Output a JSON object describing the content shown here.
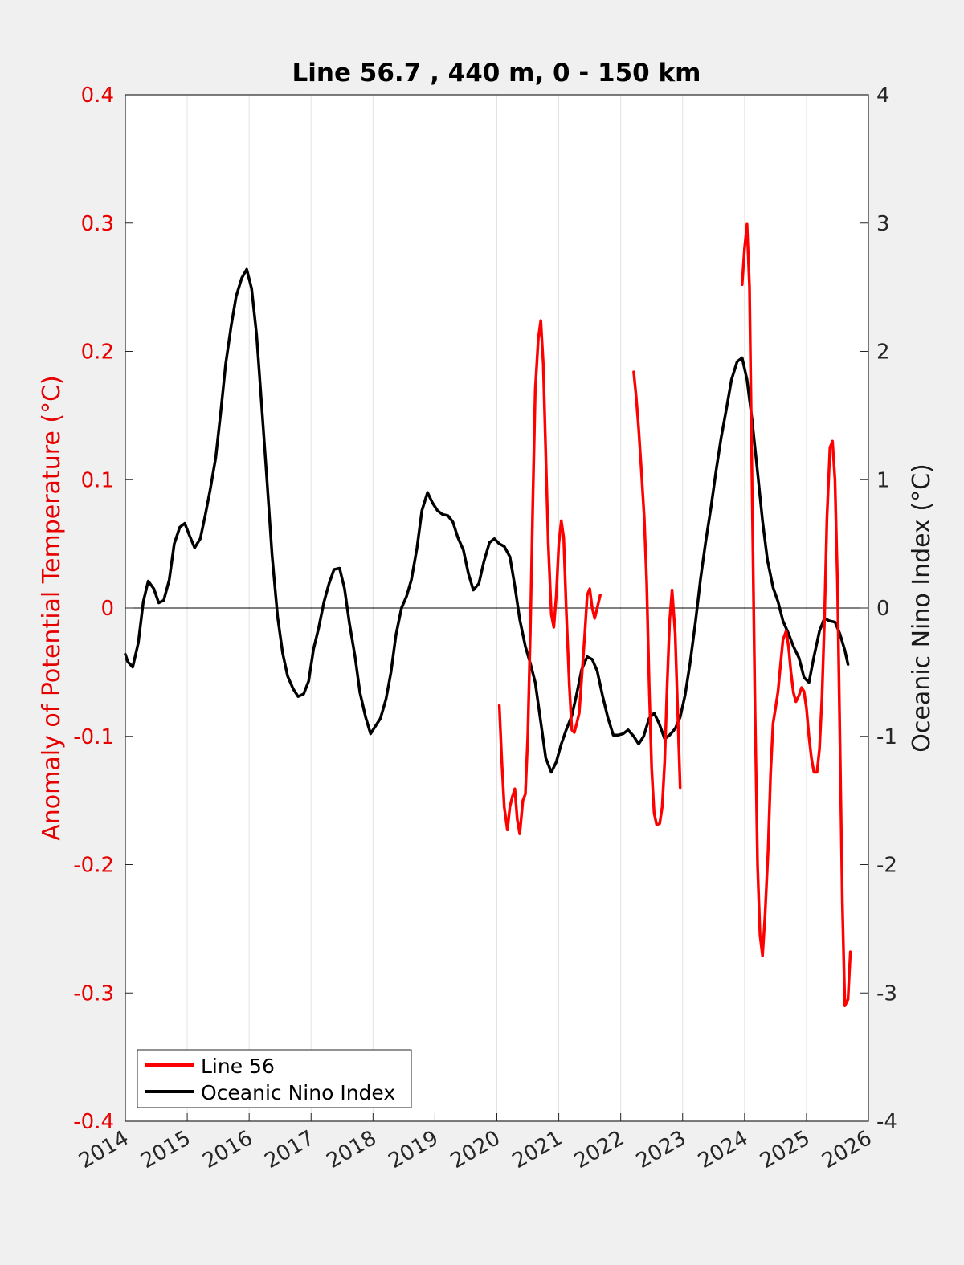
{
  "chart_data": {
    "type": "line",
    "title": "Line 56.7 , 440 m, 0 - 150 km",
    "xlabel": "",
    "ylabel_left": "Anomaly of Potential Temperature (°C)",
    "ylabel_right": "Oceanic Nino Index (°C)",
    "xlim": [
      2014,
      2026
    ],
    "ylim_left": [
      -0.4,
      0.4
    ],
    "ylim_right": [
      -4,
      4
    ],
    "x_ticks": [
      "2014",
      "2015",
      "2016",
      "2017",
      "2018",
      "2019",
      "2020",
      "2021",
      "2022",
      "2023",
      "2024",
      "2025",
      "2026"
    ],
    "y_left_ticks": [
      "0.4",
      "0.3",
      "0.2",
      "0.1",
      "0",
      "-0.1",
      "-0.2",
      "-0.3",
      "-0.4"
    ],
    "y_right_ticks": [
      "4",
      "3",
      "2",
      "1",
      "0",
      "-1",
      "-2",
      "-3",
      "-4"
    ],
    "grid": "vertical",
    "legend_position": "bottom-left",
    "colors": {
      "line56": "#ff0000",
      "oni": "#000000",
      "left_axis": "#e80000",
      "plot_bg": "#ffffff",
      "figure_bg": "#f0f0f0"
    },
    "series": [
      {
        "name": "Line 56",
        "axis": "left",
        "segments": [
          [
            [
              2020.04,
              -0.076
            ],
            [
              2020.08,
              -0.12
            ],
            [
              2020.12,
              -0.155
            ],
            [
              2020.17,
              -0.173
            ],
            [
              2020.21,
              -0.155
            ],
            [
              2020.25,
              -0.147
            ],
            [
              2020.29,
              -0.141
            ],
            [
              2020.33,
              -0.165
            ],
            [
              2020.37,
              -0.176
            ],
            [
              2020.42,
              -0.15
            ],
            [
              2020.46,
              -0.145
            ],
            [
              2020.5,
              -0.1
            ],
            [
              2020.54,
              -0.02
            ],
            [
              2020.58,
              0.08
            ],
            [
              2020.62,
              0.17
            ],
            [
              2020.67,
              0.21
            ],
            [
              2020.71,
              0.224
            ],
            [
              2020.75,
              0.19
            ],
            [
              2020.79,
              0.12
            ],
            [
              2020.83,
              0.05
            ],
            [
              2020.88,
              -0.005
            ],
            [
              2020.92,
              -0.015
            ],
            [
              2020.96,
              0.01
            ],
            [
              2021.0,
              0.05
            ],
            [
              2021.04,
              0.068
            ],
            [
              2021.08,
              0.055
            ],
            [
              2021.12,
              0.0
            ],
            [
              2021.17,
              -0.06
            ],
            [
              2021.21,
              -0.095
            ],
            [
              2021.25,
              -0.097
            ],
            [
              2021.29,
              -0.09
            ],
            [
              2021.33,
              -0.082
            ],
            [
              2021.37,
              -0.055
            ],
            [
              2021.42,
              -0.02
            ],
            [
              2021.46,
              0.01
            ],
            [
              2021.5,
              0.015
            ],
            [
              2021.54,
              0.0
            ],
            [
              2021.58,
              -0.008
            ],
            [
              2021.62,
              0.0
            ],
            [
              2021.67,
              0.01
            ]
          ],
          [
            [
              2022.21,
              0.184
            ],
            [
              2022.25,
              0.165
            ],
            [
              2022.29,
              0.14
            ],
            [
              2022.33,
              0.11
            ],
            [
              2022.38,
              0.07
            ],
            [
              2022.42,
              0.02
            ],
            [
              2022.46,
              -0.06
            ],
            [
              2022.5,
              -0.125
            ],
            [
              2022.54,
              -0.16
            ],
            [
              2022.58,
              -0.169
            ],
            [
              2022.63,
              -0.168
            ],
            [
              2022.67,
              -0.155
            ],
            [
              2022.71,
              -0.12
            ],
            [
              2022.75,
              -0.06
            ],
            [
              2022.79,
              -0.01
            ],
            [
              2022.83,
              0.014
            ],
            [
              2022.88,
              -0.02
            ],
            [
              2022.92,
              -0.08
            ],
            [
              2022.96,
              -0.14
            ]
          ],
          [
            [
              2023.96,
              0.252
            ],
            [
              2024.0,
              0.28
            ],
            [
              2024.04,
              0.299
            ],
            [
              2024.08,
              0.25
            ],
            [
              2024.12,
              0.1
            ],
            [
              2024.17,
              -0.08
            ],
            [
              2024.21,
              -0.2
            ],
            [
              2024.25,
              -0.255
            ],
            [
              2024.29,
              -0.271
            ],
            [
              2024.33,
              -0.24
            ],
            [
              2024.38,
              -0.19
            ],
            [
              2024.42,
              -0.13
            ],
            [
              2024.46,
              -0.09
            ],
            [
              2024.5,
              -0.078
            ],
            [
              2024.54,
              -0.065
            ],
            [
              2024.58,
              -0.045
            ],
            [
              2024.62,
              -0.025
            ],
            [
              2024.67,
              -0.018
            ],
            [
              2024.71,
              -0.03
            ],
            [
              2024.75,
              -0.05
            ],
            [
              2024.79,
              -0.066
            ],
            [
              2024.83,
              -0.073
            ],
            [
              2024.88,
              -0.068
            ],
            [
              2024.92,
              -0.062
            ],
            [
              2024.96,
              -0.065
            ],
            [
              2025.0,
              -0.078
            ],
            [
              2025.04,
              -0.1
            ],
            [
              2025.08,
              -0.117
            ],
            [
              2025.12,
              -0.128
            ],
            [
              2025.17,
              -0.128
            ],
            [
              2025.21,
              -0.11
            ],
            [
              2025.25,
              -0.07
            ],
            [
              2025.29,
              -0.01
            ],
            [
              2025.33,
              0.07
            ],
            [
              2025.38,
              0.125
            ],
            [
              2025.42,
              0.13
            ],
            [
              2025.46,
              0.1
            ],
            [
              2025.5,
              0.02
            ],
            [
              2025.54,
              -0.1
            ],
            [
              2025.58,
              -0.23
            ],
            [
              2025.62,
              -0.31
            ],
            [
              2025.67,
              -0.305
            ],
            [
              2025.71,
              -0.268
            ]
          ]
        ]
      },
      {
        "name": "Oceanic Nino Index",
        "axis": "right",
        "points": [
          [
            2014.0,
            -0.36
          ],
          [
            2014.04,
            -0.42
          ],
          [
            2014.12,
            -0.46
          ],
          [
            2014.21,
            -0.27
          ],
          [
            2014.29,
            0.05
          ],
          [
            2014.37,
            0.21
          ],
          [
            2014.46,
            0.15
          ],
          [
            2014.54,
            0.04
          ],
          [
            2014.62,
            0.06
          ],
          [
            2014.71,
            0.22
          ],
          [
            2014.79,
            0.5
          ],
          [
            2014.88,
            0.63
          ],
          [
            2014.96,
            0.66
          ],
          [
            2015.04,
            0.56
          ],
          [
            2015.12,
            0.47
          ],
          [
            2015.21,
            0.54
          ],
          [
            2015.29,
            0.72
          ],
          [
            2015.37,
            0.92
          ],
          [
            2015.46,
            1.17
          ],
          [
            2015.54,
            1.52
          ],
          [
            2015.62,
            1.9
          ],
          [
            2015.71,
            2.2
          ],
          [
            2015.79,
            2.43
          ],
          [
            2015.88,
            2.57
          ],
          [
            2015.96,
            2.64
          ],
          [
            2016.04,
            2.49
          ],
          [
            2016.12,
            2.13
          ],
          [
            2016.21,
            1.52
          ],
          [
            2016.29,
            0.98
          ],
          [
            2016.37,
            0.41
          ],
          [
            2016.46,
            -0.07
          ],
          [
            2016.54,
            -0.35
          ],
          [
            2016.62,
            -0.53
          ],
          [
            2016.71,
            -0.63
          ],
          [
            2016.79,
            -0.69
          ],
          [
            2016.88,
            -0.67
          ],
          [
            2016.96,
            -0.57
          ],
          [
            2017.04,
            -0.32
          ],
          [
            2017.12,
            -0.16
          ],
          [
            2017.21,
            0.05
          ],
          [
            2017.29,
            0.19
          ],
          [
            2017.37,
            0.3
          ],
          [
            2017.46,
            0.31
          ],
          [
            2017.54,
            0.15
          ],
          [
            2017.62,
            -0.12
          ],
          [
            2017.71,
            -0.38
          ],
          [
            2017.79,
            -0.66
          ],
          [
            2017.88,
            -0.85
          ],
          [
            2017.96,
            -0.98
          ],
          [
            2018.04,
            -0.92
          ],
          [
            2018.12,
            -0.86
          ],
          [
            2018.21,
            -0.71
          ],
          [
            2018.29,
            -0.5
          ],
          [
            2018.37,
            -0.21
          ],
          [
            2018.46,
            0.0
          ],
          [
            2018.54,
            0.09
          ],
          [
            2018.62,
            0.22
          ],
          [
            2018.71,
            0.47
          ],
          [
            2018.79,
            0.76
          ],
          [
            2018.88,
            0.9
          ],
          [
            2018.96,
            0.82
          ],
          [
            2019.04,
            0.76
          ],
          [
            2019.12,
            0.73
          ],
          [
            2019.21,
            0.72
          ],
          [
            2019.29,
            0.67
          ],
          [
            2019.37,
            0.55
          ],
          [
            2019.46,
            0.45
          ],
          [
            2019.54,
            0.27
          ],
          [
            2019.62,
            0.14
          ],
          [
            2019.71,
            0.19
          ],
          [
            2019.79,
            0.36
          ],
          [
            2019.88,
            0.51
          ],
          [
            2019.96,
            0.54
          ],
          [
            2020.04,
            0.5
          ],
          [
            2020.12,
            0.48
          ],
          [
            2020.21,
            0.4
          ],
          [
            2020.29,
            0.17
          ],
          [
            2020.37,
            -0.09
          ],
          [
            2020.46,
            -0.3
          ],
          [
            2020.54,
            -0.43
          ],
          [
            2020.62,
            -0.58
          ],
          [
            2020.71,
            -0.89
          ],
          [
            2020.79,
            -1.17
          ],
          [
            2020.88,
            -1.28
          ],
          [
            2020.96,
            -1.2
          ],
          [
            2021.04,
            -1.06
          ],
          [
            2021.12,
            -0.95
          ],
          [
            2021.21,
            -0.84
          ],
          [
            2021.29,
            -0.67
          ],
          [
            2021.37,
            -0.48
          ],
          [
            2021.46,
            -0.38
          ],
          [
            2021.54,
            -0.4
          ],
          [
            2021.62,
            -0.49
          ],
          [
            2021.71,
            -0.69
          ],
          [
            2021.79,
            -0.85
          ],
          [
            2021.88,
            -0.99
          ],
          [
            2021.96,
            -0.99
          ],
          [
            2022.04,
            -0.98
          ],
          [
            2022.12,
            -0.95
          ],
          [
            2022.21,
            -1.0
          ],
          [
            2022.29,
            -1.06
          ],
          [
            2022.37,
            -1.0
          ],
          [
            2022.46,
            -0.86
          ],
          [
            2022.54,
            -0.82
          ],
          [
            2022.62,
            -0.9
          ],
          [
            2022.71,
            -1.02
          ],
          [
            2022.79,
            -0.99
          ],
          [
            2022.88,
            -0.94
          ],
          [
            2022.96,
            -0.85
          ],
          [
            2023.04,
            -0.68
          ],
          [
            2023.12,
            -0.43
          ],
          [
            2023.21,
            -0.1
          ],
          [
            2023.29,
            0.23
          ],
          [
            2023.37,
            0.51
          ],
          [
            2023.46,
            0.79
          ],
          [
            2023.54,
            1.07
          ],
          [
            2023.62,
            1.32
          ],
          [
            2023.71,
            1.56
          ],
          [
            2023.79,
            1.78
          ],
          [
            2023.88,
            1.92
          ],
          [
            2023.96,
            1.95
          ],
          [
            2024.04,
            1.78
          ],
          [
            2024.12,
            1.47
          ],
          [
            2024.21,
            1.06
          ],
          [
            2024.29,
            0.68
          ],
          [
            2024.37,
            0.37
          ],
          [
            2024.46,
            0.16
          ],
          [
            2024.54,
            0.05
          ],
          [
            2024.62,
            -0.1
          ],
          [
            2024.71,
            -0.2
          ],
          [
            2024.79,
            -0.3
          ],
          [
            2024.88,
            -0.39
          ],
          [
            2024.96,
            -0.54
          ],
          [
            2025.04,
            -0.58
          ],
          [
            2025.12,
            -0.38
          ],
          [
            2025.21,
            -0.18
          ],
          [
            2025.29,
            -0.08
          ],
          [
            2025.37,
            -0.1
          ],
          [
            2025.46,
            -0.11
          ],
          [
            2025.54,
            -0.2
          ],
          [
            2025.62,
            -0.33
          ],
          [
            2025.67,
            -0.44
          ]
        ]
      }
    ]
  }
}
